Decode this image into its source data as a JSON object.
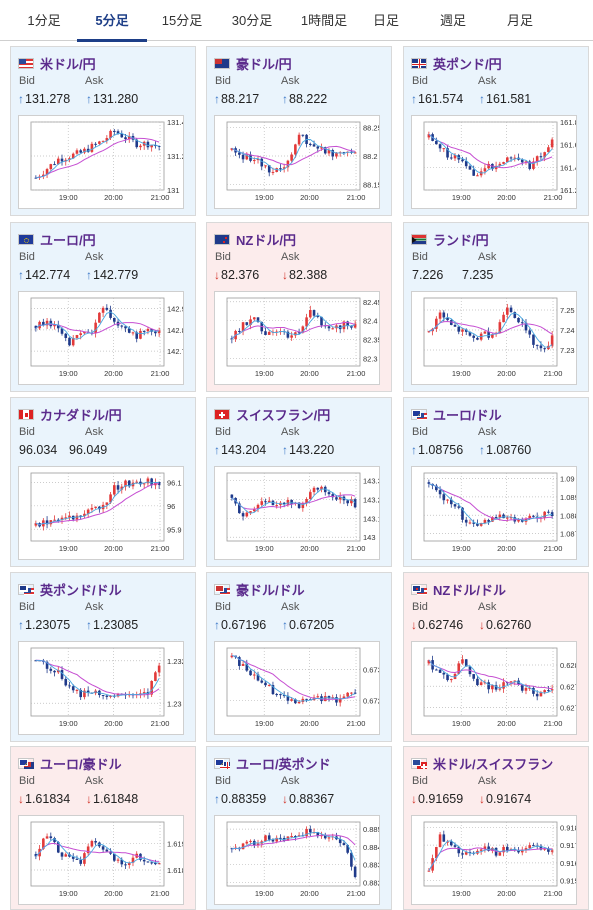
{
  "tabs": [
    {
      "label": "1分足",
      "active": false
    },
    {
      "label": "5分足",
      "active": true
    },
    {
      "label": "15分足",
      "active": false
    },
    {
      "label": "30分足",
      "active": false
    },
    {
      "label": "1時間足",
      "active": false
    },
    {
      "label": "日足",
      "active": false
    },
    {
      "label": "週足",
      "active": false
    },
    {
      "label": "月足",
      "active": false
    }
  ],
  "colors": {
    "up_bg": "#eaf4fc",
    "down_bg": "#fcecec",
    "arrow_up": "#3a77c7",
    "arrow_down": "#d2342a",
    "candle_up": "#e23a3a",
    "candle_down": "#1f3a8a",
    "ma_a": "#c64fd2",
    "ma_b": "#4aa8e0"
  },
  "labels": {
    "bid": "Bid",
    "ask": "Ask"
  },
  "cards": [
    {
      "pair": "米ドル/円",
      "title_color": "violet",
      "flag": "us",
      "direction": "up",
      "bid": "131.278",
      "ask": "131.280",
      "bid_arrow": "↑",
      "ask_arrow": "↑",
      "chart_data": {
        "type": "candlestick",
        "x_ticks": [
          "19:00",
          "20:00",
          "21:00"
        ],
        "y_ticks": [
          "131.4",
          "131.2",
          "131"
        ],
        "ylim": [
          131.0,
          131.4
        ]
      }
    },
    {
      "pair": "豪ドル/円",
      "title_color": "violet",
      "flag": "au",
      "direction": "up",
      "bid": "88.217",
      "ask": "88.222",
      "bid_arrow": "↑",
      "ask_arrow": "↑",
      "chart_data": {
        "type": "candlestick",
        "x_ticks": [
          "19:00",
          "20:00",
          "21:00"
        ],
        "y_ticks": [
          "88.25",
          "88.2",
          "88.15"
        ],
        "ylim": [
          88.14,
          88.26
        ]
      }
    },
    {
      "pair": "英ポンド/円",
      "title_color": "violet",
      "flag": "gb",
      "direction": "up",
      "bid": "161.574",
      "ask": "161.581",
      "bid_arrow": "↑",
      "ask_arrow": "↑",
      "chart_data": {
        "type": "candlestick",
        "x_ticks": [
          "19:00",
          "20:00",
          "21:00"
        ],
        "y_ticks": [
          "161.8",
          "161.6",
          "161.4",
          "161.2"
        ],
        "ylim": [
          161.2,
          161.8
        ]
      }
    },
    {
      "pair": "ユーロ/円",
      "title_color": "violet",
      "flag": "eu",
      "direction": "up",
      "bid": "142.774",
      "ask": "142.779",
      "bid_arrow": "↑",
      "ask_arrow": "↑",
      "chart_data": {
        "type": "candlestick",
        "x_ticks": [
          "19:00",
          "20:00",
          "21:00"
        ],
        "y_ticks": [
          "142.9",
          "142.8",
          "142.7"
        ],
        "ylim": [
          142.63,
          142.95
        ]
      }
    },
    {
      "pair": "NZドル/円",
      "title_color": "violet",
      "flag": "nz",
      "direction": "down",
      "bid": "82.376",
      "ask": "82.388",
      "bid_arrow": "↓",
      "ask_arrow": "↓",
      "chart_data": {
        "type": "candlestick",
        "x_ticks": [
          "19:00",
          "20:00",
          "21:00"
        ],
        "y_ticks": [
          "82.45",
          "82.4",
          "82.35",
          "82.3"
        ],
        "ylim": [
          82.28,
          82.46
        ]
      }
    },
    {
      "pair": "ランド/円",
      "title_color": "violet",
      "flag": "za",
      "direction": "none",
      "bid": "7.226",
      "ask": "7.235",
      "bid_arrow": "",
      "ask_arrow": "",
      "chart_data": {
        "type": "candlestick",
        "x_ticks": [
          "19:00",
          "20:00",
          "21:00"
        ],
        "y_ticks": [
          "7.25",
          "7.24",
          "7.23"
        ],
        "ylim": [
          7.222,
          7.256
        ]
      }
    },
    {
      "pair": "カナダドル/円",
      "title_color": "violet",
      "flag": "ca",
      "direction": "none",
      "bid": "96.034",
      "ask": "96.049",
      "bid_arrow": "",
      "ask_arrow": "",
      "chart_data": {
        "type": "candlestick",
        "x_ticks": [
          "19:00",
          "20:00",
          "21:00"
        ],
        "y_ticks": [
          "96.1",
          "96",
          "95.9"
        ],
        "ylim": [
          95.85,
          96.14
        ]
      }
    },
    {
      "pair": "スイスフラン/円",
      "title_color": "violet",
      "flag": "ch",
      "direction": "up",
      "bid": "143.204",
      "ask": "143.220",
      "bid_arrow": "↑",
      "ask_arrow": "↑",
      "chart_data": {
        "type": "candlestick",
        "x_ticks": [
          "19:00",
          "20:00",
          "21:00"
        ],
        "y_ticks": [
          "143.3",
          "143.2",
          "143.1",
          "143"
        ],
        "ylim": [
          142.98,
          143.34
        ]
      }
    },
    {
      "pair": "ユーロ/ドル",
      "title_color": "violet",
      "flag": "eu-us",
      "direction": "up",
      "bid": "1.08756",
      "ask": "1.08760",
      "bid_arrow": "↑",
      "ask_arrow": "↑",
      "chart_data": {
        "type": "candlestick",
        "x_ticks": [
          "19:00",
          "20:00",
          "21:00"
        ],
        "y_ticks": [
          "1.09",
          "1.089",
          "1.088",
          "1.087"
        ],
        "ylim": [
          1.0866,
          1.0903
        ]
      }
    },
    {
      "pair": "英ポンド/ドル",
      "title_color": "violet",
      "flag": "gb-us",
      "direction": "up",
      "bid": "1.23075",
      "ask": "1.23085",
      "bid_arrow": "↑",
      "ask_arrow": "↑",
      "chart_data": {
        "type": "candlestick",
        "x_ticks": [
          "19:00",
          "20:00",
          "21:00"
        ],
        "y_ticks": [
          "1.232",
          "1.23"
        ],
        "ylim": [
          1.2294,
          1.2326
        ]
      }
    },
    {
      "pair": "豪ドル/ドル",
      "title_color": "violet",
      "flag": "au-us",
      "direction": "up",
      "bid": "0.67196",
      "ask": "0.67205",
      "bid_arrow": "↑",
      "ask_arrow": "↑",
      "chart_data": {
        "type": "candlestick",
        "x_ticks": [
          "19:00",
          "20:00",
          "21:00"
        ],
        "y_ticks": [
          "0.673",
          "0.672"
        ],
        "ylim": [
          0.6715,
          0.6737
        ]
      }
    },
    {
      "pair": "NZドル/ドル",
      "title_color": "violet",
      "flag": "nz-us",
      "direction": "down",
      "bid": "0.62746",
      "ask": "0.62760",
      "bid_arrow": "↓",
      "ask_arrow": "↓",
      "chart_data": {
        "type": "candlestick",
        "x_ticks": [
          "19:00",
          "20:00",
          "21:00"
        ],
        "y_ticks": [
          "0.628",
          "0.6275",
          "0.627"
        ],
        "ylim": [
          0.6268,
          0.6284
        ]
      }
    },
    {
      "pair": "ユーロ/豪ドル",
      "title_color": "violet",
      "flag": "eu-au",
      "direction": "down",
      "bid": "1.61834",
      "ask": "1.61848",
      "bid_arrow": "↓",
      "ask_arrow": "↓",
      "chart_data": {
        "type": "candlestick",
        "x_ticks": [
          "19:00",
          "20:00",
          "21:00"
        ],
        "y_ticks": [
          "1.619",
          "1.618"
        ],
        "ylim": [
          1.6174,
          1.6198
        ]
      }
    },
    {
      "pair": "ユーロ/英ポンド",
      "title_color": "violet",
      "flag": "eu-gb",
      "direction": "up",
      "bid": "0.88359",
      "ask": "0.88367",
      "bid_arrow": "↑",
      "ask_arrow": "↓",
      "chart_data": {
        "type": "candlestick",
        "x_ticks": [
          "19:00",
          "20:00",
          "21:00"
        ],
        "y_ticks": [
          "0.885",
          "0.884",
          "0.883",
          "0.882"
        ],
        "ylim": [
          0.8818,
          0.8854
        ]
      }
    },
    {
      "pair": "米ドル/スイスフラン",
      "title_color": "violet",
      "flag": "us-ch",
      "direction": "down",
      "bid": "0.91659",
      "ask": "0.91674",
      "bid_arrow": "↓",
      "ask_arrow": "↓",
      "chart_data": {
        "type": "candlestick",
        "x_ticks": [
          "19:00",
          "20:00",
          "21:00"
        ],
        "y_ticks": [
          "0.918",
          "0.917",
          "0.916",
          "0.915"
        ],
        "ylim": [
          0.9147,
          0.9183
        ]
      }
    }
  ]
}
